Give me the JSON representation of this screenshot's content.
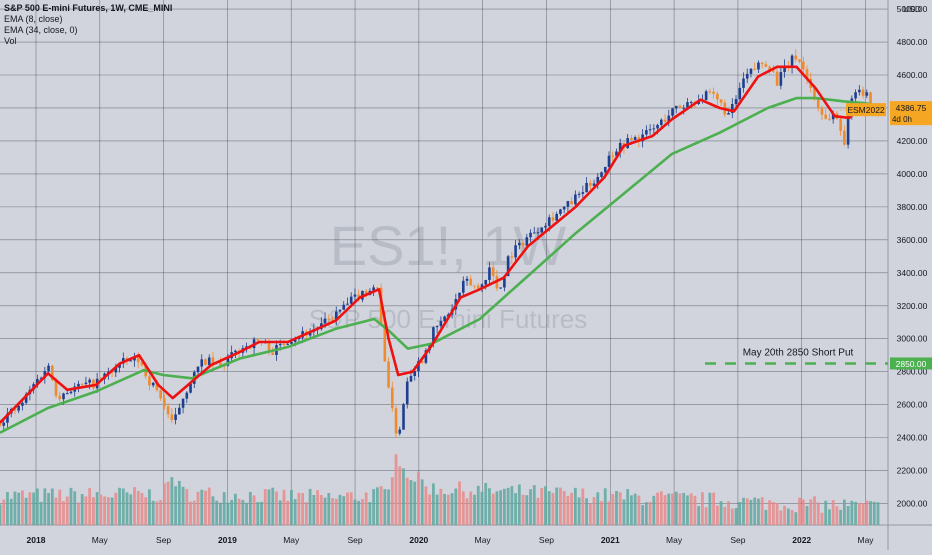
{
  "legend": {
    "title": "S&P 500 E-mini Futures, 1W, CME_MINI",
    "ema_fast": "EMA (8, close)",
    "ema_slow": "EMA (34, close, 0)",
    "volume": "Vol"
  },
  "watermark": {
    "symbol": "ES1!, 1W",
    "name": "S&P 500 E-mini Futures"
  },
  "colors": {
    "background": "#d1d4dc",
    "grid": "#2a2e39",
    "up": "#1e3f8f",
    "down": "#f08a2c",
    "ema_fast": "#ee1111",
    "ema_slow": "#4caf50",
    "vol_up": "#5fa8a0",
    "vol_down": "#e88a8a",
    "last_price_bg": "#f5a623",
    "put_line": "#4caf50"
  },
  "chart_data": {
    "type": "line",
    "y_axis": {
      "unit": "USD",
      "ticks": [
        "5000.00",
        "4800.00",
        "4600.00",
        "4400.00",
        "4200.00",
        "4000.00",
        "3800.00",
        "3600.00",
        "3400.00",
        "3200.00",
        "3000.00",
        "2800.00",
        "2600.00",
        "2400.00",
        "2200.00",
        "2000.00"
      ],
      "ylim": [
        1870,
        5055
      ]
    },
    "x_axis": {
      "ticks": [
        "2018",
        "May",
        "Sep",
        "2019",
        "May",
        "Sep",
        "2020",
        "May",
        "Sep",
        "2021",
        "May",
        "Sep",
        "2022",
        "May"
      ],
      "range": [
        "2017-09",
        "2022-05"
      ]
    },
    "price_anchors": [
      {
        "t": 0.0,
        "v": 2500
      },
      {
        "t": 0.2,
        "v": 2550
      },
      {
        "t": 0.4,
        "v": 2580
      },
      {
        "t": 0.7,
        "v": 2720
      },
      {
        "t": 1.0,
        "v": 2840
      },
      {
        "t": 1.2,
        "v": 2650
      },
      {
        "t": 1.5,
        "v": 2700
      },
      {
        "t": 1.8,
        "v": 2720
      },
      {
        "t": 2.0,
        "v": 2730
      },
      {
        "t": 2.3,
        "v": 2800
      },
      {
        "t": 2.6,
        "v": 2860
      },
      {
        "t": 2.9,
        "v": 2870
      },
      {
        "t": 3.1,
        "v": 2750
      },
      {
        "t": 3.35,
        "v": 2650
      },
      {
        "t": 3.6,
        "v": 2470
      },
      {
        "t": 3.8,
        "v": 2640
      },
      {
        "t": 4.0,
        "v": 2760
      },
      {
        "t": 4.25,
        "v": 2870
      },
      {
        "t": 4.6,
        "v": 2830
      },
      {
        "t": 5.0,
        "v": 2940
      },
      {
        "t": 5.4,
        "v": 2990
      },
      {
        "t": 5.7,
        "v": 2920
      },
      {
        "t": 6.0,
        "v": 3000
      },
      {
        "t": 6.3,
        "v": 3030
      },
      {
        "t": 6.6,
        "v": 3060
      },
      {
        "t": 6.9,
        "v": 3120
      },
      {
        "t": 7.2,
        "v": 3200
      },
      {
        "t": 7.5,
        "v": 3270
      },
      {
        "t": 7.7,
        "v": 3300
      },
      {
        "t": 7.85,
        "v": 3330
      },
      {
        "t": 8.0,
        "v": 2930
      },
      {
        "t": 8.2,
        "v": 2500
      },
      {
        "t": 8.3,
        "v": 2400
      },
      {
        "t": 8.5,
        "v": 2780
      },
      {
        "t": 8.8,
        "v": 2880
      },
      {
        "t": 9.0,
        "v": 3030
      },
      {
        "t": 9.4,
        "v": 3170
      },
      {
        "t": 9.7,
        "v": 3350
      },
      {
        "t": 10.0,
        "v": 3300
      },
      {
        "t": 10.2,
        "v": 3430
      },
      {
        "t": 10.4,
        "v": 3280
      },
      {
        "t": 10.6,
        "v": 3500
      },
      {
        "t": 11.0,
        "v": 3620
      },
      {
        "t": 11.4,
        "v": 3720
      },
      {
        "t": 11.8,
        "v": 3800
      },
      {
        "t": 12.1,
        "v": 3880
      },
      {
        "t": 12.5,
        "v": 4000
      },
      {
        "t": 12.8,
        "v": 4150
      },
      {
        "t": 13.1,
        "v": 4200
      },
      {
        "t": 13.4,
        "v": 4230
      },
      {
        "t": 13.7,
        "v": 4290
      },
      {
        "t": 14.0,
        "v": 4380
      },
      {
        "t": 14.4,
        "v": 4440
      },
      {
        "t": 14.8,
        "v": 4480
      },
      {
        "t": 15.0,
        "v": 4430
      },
      {
        "t": 15.2,
        "v": 4350
      },
      {
        "t": 15.5,
        "v": 4570
      },
      {
        "t": 15.8,
        "v": 4660
      },
      {
        "t": 16.0,
        "v": 4680
      },
      {
        "t": 16.2,
        "v": 4560
      },
      {
        "t": 16.4,
        "v": 4650
      },
      {
        "t": 16.6,
        "v": 4720
      },
      {
        "t": 16.8,
        "v": 4600
      },
      {
        "t": 17.0,
        "v": 4440
      },
      {
        "t": 17.2,
        "v": 4330
      },
      {
        "t": 17.4,
        "v": 4370
      },
      {
        "t": 17.6,
        "v": 4200
      },
      {
        "t": 17.8,
        "v": 4530
      },
      {
        "t": 18.0,
        "v": 4500
      },
      {
        "t": 18.2,
        "v": 4400
      }
    ],
    "ema_fast": [
      [
        0,
        2490
      ],
      [
        1,
        2790
      ],
      [
        1.4,
        2690
      ],
      [
        2,
        2720
      ],
      [
        2.5,
        2850
      ],
      [
        2.9,
        2900
      ],
      [
        3.3,
        2720
      ],
      [
        3.6,
        2640
      ],
      [
        4,
        2740
      ],
      [
        4.4,
        2840
      ],
      [
        5,
        2920
      ],
      [
        5.4,
        2980
      ],
      [
        6,
        2980
      ],
      [
        7,
        3110
      ],
      [
        7.5,
        3250
      ],
      [
        7.9,
        3300
      ],
      [
        8.1,
        3000
      ],
      [
        8.3,
        2780
      ],
      [
        8.6,
        2800
      ],
      [
        9,
        2960
      ],
      [
        9.6,
        3250
      ],
      [
        10,
        3300
      ],
      [
        10.5,
        3370
      ],
      [
        11,
        3560
      ],
      [
        12,
        3800
      ],
      [
        12.6,
        3980
      ],
      [
        13,
        4170
      ],
      [
        13.6,
        4230
      ],
      [
        14,
        4330
      ],
      [
        14.6,
        4450
      ],
      [
        15,
        4400
      ],
      [
        15.3,
        4380
      ],
      [
        15.8,
        4590
      ],
      [
        16.2,
        4650
      ],
      [
        16.6,
        4650
      ],
      [
        17,
        4520
      ],
      [
        17.4,
        4350
      ],
      [
        17.7,
        4340
      ],
      [
        18,
        4420
      ],
      [
        18.2,
        4410
      ]
    ],
    "ema_slow": [
      [
        0,
        2430
      ],
      [
        1,
        2580
      ],
      [
        2,
        2680
      ],
      [
        3,
        2810
      ],
      [
        3.4,
        2780
      ],
      [
        4,
        2760
      ],
      [
        5,
        2880
      ],
      [
        6,
        2950
      ],
      [
        7,
        3060
      ],
      [
        7.8,
        3120
      ],
      [
        8.1,
        3050
      ],
      [
        8.5,
        2940
      ],
      [
        9,
        2970
      ],
      [
        10,
        3120
      ],
      [
        11,
        3380
      ],
      [
        12,
        3640
      ],
      [
        13,
        3880
      ],
      [
        14,
        4120
      ],
      [
        15,
        4250
      ],
      [
        16,
        4400
      ],
      [
        16.6,
        4460
      ],
      [
        17,
        4460
      ],
      [
        17.6,
        4440
      ],
      [
        18,
        4430
      ],
      [
        18.2,
        4420
      ]
    ],
    "volume_anchors": [
      {
        "t": 0,
        "v": 0.22
      },
      {
        "t": 3.4,
        "v": 0.24
      },
      {
        "t": 3.6,
        "v": 0.45
      },
      {
        "t": 3.8,
        "v": 0.25
      },
      {
        "t": 7.0,
        "v": 0.2
      },
      {
        "t": 8.1,
        "v": 0.25
      },
      {
        "t": 8.25,
        "v": 0.75
      },
      {
        "t": 8.4,
        "v": 0.5
      },
      {
        "t": 9.0,
        "v": 0.3
      },
      {
        "t": 18.3,
        "v": 0.1
      }
    ],
    "last_price": {
      "symbol": "ESM2022",
      "value": "4386.75",
      "countdown": "4d 0h",
      "y": 4386.75
    },
    "put_level": {
      "label": "May 20th 2850 Short Put",
      "value": "2850.00",
      "y": 2850
    }
  }
}
